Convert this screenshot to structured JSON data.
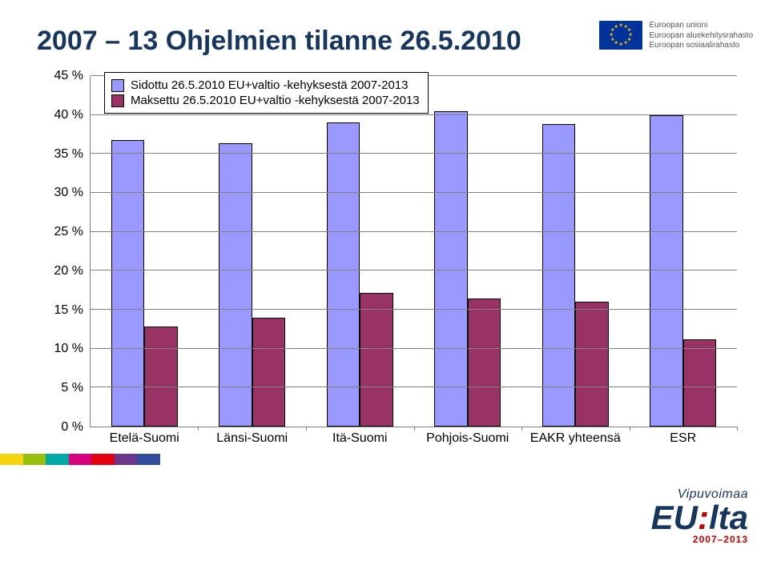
{
  "title": "2007 – 13 Ohjelmien tilanne 26.5.2010",
  "title_color": "#17365d",
  "title_fontsize": 34,
  "eu": {
    "line1": "Euroopan unioni",
    "line2": "Euroopan aluekehitysrahasto",
    "line3": "Euroopan sosiaalirahasto"
  },
  "legend": {
    "series": [
      {
        "label": "Sidottu 26.5.2010 EU+valtio -kehyksestä 2007-2013",
        "color": "#9999ff"
      },
      {
        "label": "Maksettu 26.5.2010 EU+valtio -kehyksestä 2007-2013",
        "color": "#993366"
      }
    ]
  },
  "chart": {
    "type": "bar",
    "ylim": [
      0,
      45
    ],
    "ytick_step": 5,
    "y_suffix": " %",
    "grid_color": "#808080",
    "axis_color": "#808080",
    "background_color": "#ffffff",
    "label_fontsize": 16,
    "bar_border_color": "#000000",
    "bar_group_width": 0.62,
    "categories": [
      "Etelä-Suomi",
      "Länsi-Suomi",
      "Itä-Suomi",
      "Pohjois-Suomi",
      "EAKR yhteensä",
      "ESR"
    ],
    "series": [
      {
        "name": "Sidottu",
        "color": "#9999ff",
        "values": [
          36.8,
          36.4,
          39.0,
          40.5,
          38.8,
          40.0
        ]
      },
      {
        "name": "Maksettu",
        "color": "#993366",
        "values": [
          12.8,
          14.0,
          17.2,
          16.4,
          16.0,
          11.2
        ]
      }
    ]
  },
  "stripe_colors": [
    "#f4d40a",
    "#97bf0d",
    "#00a9a6",
    "#d6007f",
    "#e3000f",
    "#6a378b",
    "#304e9c"
  ],
  "vipu": {
    "top": "Vipuvoimaa",
    "main_left": "EU",
    "main_right": "lta",
    "years": "2007–2013"
  }
}
